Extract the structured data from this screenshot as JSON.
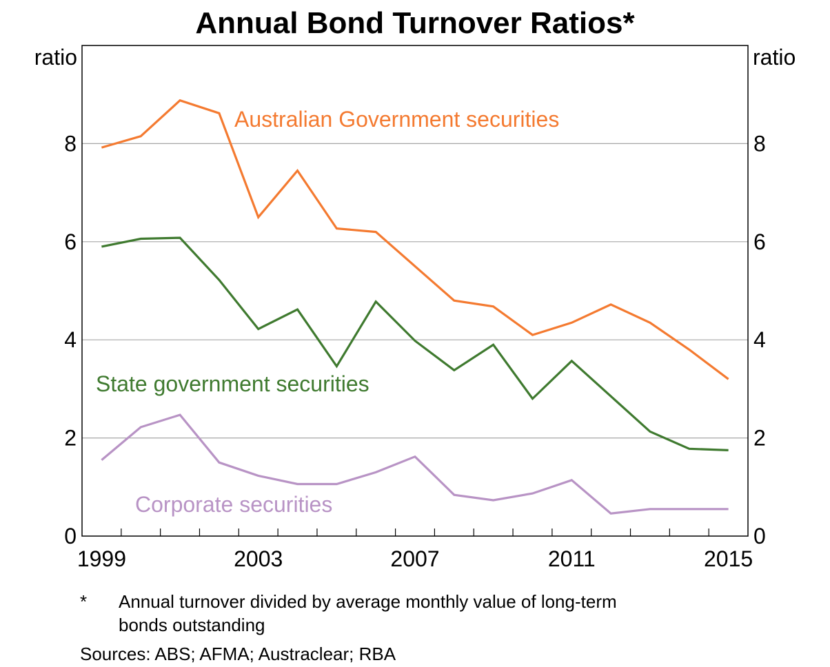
{
  "chart_data": {
    "type": "line",
    "title": "Annual Bond Turnover Ratios*",
    "ylabel_left": "ratio",
    "ylabel_right": "ratio",
    "x": [
      1999,
      2000,
      2001,
      2002,
      2003,
      2004,
      2005,
      2006,
      2007,
      2008,
      2009,
      2010,
      2011,
      2012,
      2013,
      2014,
      2015
    ],
    "xlim": [
      1998.5,
      2015.5
    ],
    "ylim": [
      0,
      10
    ],
    "y_ticks": [
      0,
      2,
      4,
      6,
      8
    ],
    "x_tick_labels": [
      "1999",
      "2003",
      "2007",
      "2011",
      "2015"
    ],
    "grid": true,
    "series": [
      {
        "name": "Australian Government securities",
        "color": "#f47a30",
        "values": [
          7.92,
          8.15,
          8.88,
          8.62,
          6.5,
          7.45,
          6.27,
          6.2,
          5.5,
          4.8,
          4.68,
          4.1,
          4.35,
          4.72,
          4.35,
          3.8,
          3.2
        ]
      },
      {
        "name": "State government securities",
        "color": "#3f7a2f",
        "values": [
          5.9,
          6.06,
          6.08,
          5.22,
          4.22,
          4.62,
          3.46,
          4.78,
          3.98,
          3.38,
          3.9,
          2.8,
          3.57,
          2.85,
          2.13,
          1.78,
          1.75
        ]
      },
      {
        "name": "Corporate securities",
        "color": "#b893c5",
        "values": [
          1.55,
          2.22,
          2.47,
          1.5,
          1.23,
          1.06,
          1.06,
          1.3,
          1.62,
          0.84,
          0.73,
          0.87,
          1.14,
          0.46,
          0.55,
          0.55,
          0.55
        ]
      }
    ]
  },
  "footnote": {
    "marker": "*",
    "text_line1": "Annual turnover divided by average monthly value of  long-term",
    "text_line2": "bonds outstanding"
  },
  "sources": "Sources:  ABS; AFMA; Austraclear; RBA"
}
